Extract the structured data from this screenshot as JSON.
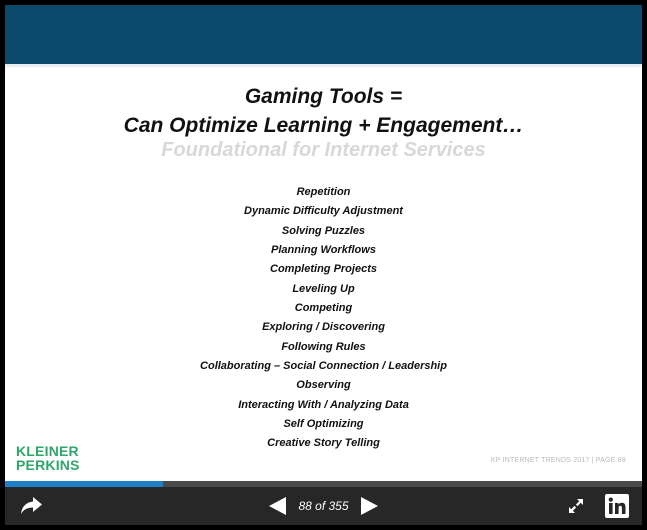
{
  "slide": {
    "title_line1": "Gaming Tools =",
    "title_line2": "Can Optimize Learning + Engagement…",
    "subtitle": "Foundational for Internet Services",
    "items": [
      "Repetition",
      "Dynamic Difficulty Adjustment",
      "Solving Puzzles",
      "Planning Workflows",
      "Completing Projects",
      "Leveling Up",
      "Competing",
      "Exploring / Discovering",
      "Following Rules",
      "Collaborating – Social Connection / Leadership",
      "Observing",
      "Interacting With / Analyzing Data",
      "Self Optimizing",
      "Creative Story Telling"
    ],
    "logo_line1": "KLEINER",
    "logo_line2": "PERKINS",
    "footer_note": "KP INTERNET TRENDS 2017   |   PAGE 88",
    "colors": {
      "header": "#0b4a6b",
      "logo": "#2fa66a",
      "progress": "#1f7fc7"
    }
  },
  "viewer": {
    "page_counter": "88 of 355",
    "current_page": 88,
    "total_pages": 355,
    "progress_fraction": 0.248,
    "icons": {
      "share": "share-icon",
      "prev": "triangle-left-icon",
      "next": "triangle-right-icon",
      "expand": "expand-icon",
      "linkedin": "linkedin-icon"
    }
  }
}
